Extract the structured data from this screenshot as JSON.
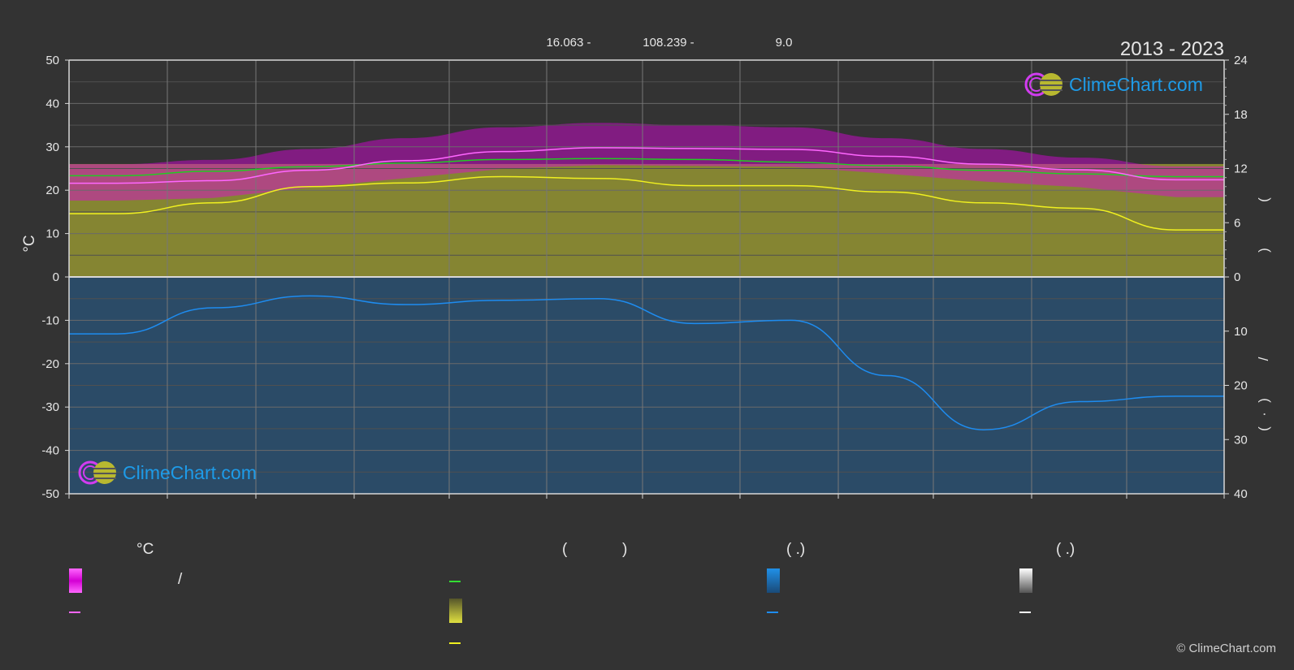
{
  "header": {
    "coords": [
      "16.063 -",
      "108.239 -",
      "9.0"
    ],
    "period": "2013 - 2023"
  },
  "brand": {
    "logo_text": "ClimeChart.com",
    "copyright": "© ClimeChart.com"
  },
  "legend": {
    "col1_header": "°C",
    "col2_header_left": "(",
    "col2_header_right": ")",
    "col3_header": "(   .)",
    "col4_header": "(   .)",
    "slash": "/"
  },
  "colors": {
    "background": "#333333",
    "temp_band": "#e000e0",
    "temp_mean": "#ff66ff",
    "daylight": "#22cc22",
    "sunshine_band": "#c8c832",
    "sunshine_line": "#f0f020",
    "precip_band": "#1e78c8",
    "precip_line": "#1e8cf0",
    "snow": "#ffffff"
  },
  "chart_data": {
    "type": "area",
    "title": "",
    "months_count": 12,
    "left_axis": {
      "label": "°C",
      "ylim": [
        -50,
        50
      ],
      "ticks": [
        50,
        40,
        30,
        20,
        10,
        0,
        -10,
        -20,
        -30,
        -40,
        -50
      ]
    },
    "right_axis_top": {
      "label": "",
      "ylim": [
        0,
        24
      ],
      "ticks": [
        24,
        18,
        12,
        6,
        0
      ]
    },
    "right_axis_bottom": {
      "label": "",
      "ylim": [
        0,
        40
      ],
      "ticks": [
        0,
        10,
        20,
        30,
        40
      ]
    },
    "grid": true,
    "series": [
      {
        "key": "temp_mean",
        "values": [
          21.6,
          22.2,
          24.6,
          26.8,
          28.9,
          29.8,
          29.6,
          29.4,
          27.8,
          26.0,
          24.7,
          22.4
        ]
      },
      {
        "key": "daylight_hours",
        "values": [
          11.2,
          11.7,
          12.2,
          12.6,
          13.0,
          13.1,
          13.0,
          12.7,
          12.3,
          11.8,
          11.4,
          11.1
        ]
      },
      {
        "key": "sunshine_hours",
        "values": [
          7.0,
          8.2,
          10.0,
          10.4,
          11.1,
          10.9,
          10.1,
          10.1,
          9.4,
          8.2,
          7.6,
          5.2
        ]
      },
      {
        "key": "precip_mm",
        "values": [
          10.5,
          5.7,
          3.5,
          5.1,
          4.3,
          4.0,
          8.6,
          8.0,
          18.2,
          28.2,
          23.0,
          22.0
        ]
      },
      {
        "key": "temp_band_high",
        "values": [
          26.0,
          27.0,
          29.5,
          32.0,
          34.5,
          35.5,
          35.0,
          34.5,
          32.0,
          29.5,
          27.5,
          25.5
        ]
      }
    ]
  }
}
